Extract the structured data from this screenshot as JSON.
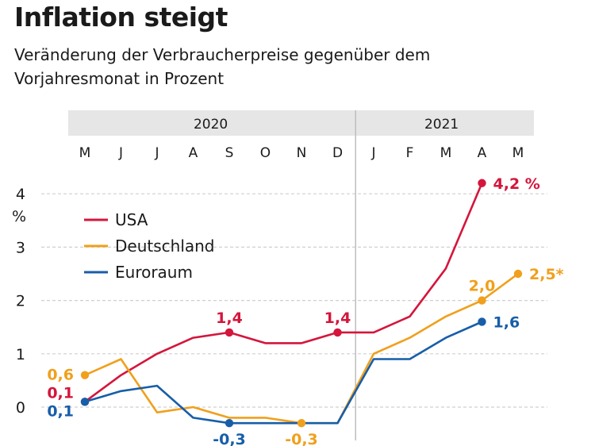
{
  "title": "Inflation steigt",
  "subtitle": "Veränderung der Verbraucherpreise gegenüber dem Vorjahresmonat in Prozent",
  "chart_data": {
    "type": "line",
    "categories": [
      "M",
      "J",
      "J",
      "A",
      "S",
      "O",
      "N",
      "D",
      "J",
      "F",
      "M",
      "A",
      "M"
    ],
    "year_groups": [
      {
        "label": "2020",
        "from": 0,
        "to": 7
      },
      {
        "label": "2021",
        "from": 8,
        "to": 12
      }
    ],
    "ylim": [
      -0.3,
      4.5
    ],
    "yticks": [
      0,
      1,
      2,
      3,
      4
    ],
    "yunit": "%",
    "grid": true,
    "legend_position": "top-left",
    "series": [
      {
        "name": "USA",
        "color": "#d4163c",
        "values": [
          0.1,
          0.6,
          1.0,
          1.3,
          1.4,
          1.2,
          1.2,
          1.4,
          1.4,
          1.7,
          2.6,
          4.2,
          null
        ]
      },
      {
        "name": "Deutschland",
        "color": "#f0a01c",
        "values": [
          0.6,
          0.9,
          -0.1,
          0.0,
          -0.2,
          -0.2,
          -0.3,
          -0.3,
          1.0,
          1.3,
          1.7,
          2.0,
          2.5
        ]
      },
      {
        "name": "Euroraum",
        "color": "#175ea9",
        "values": [
          0.1,
          0.3,
          0.4,
          -0.2,
          -0.3,
          -0.3,
          -0.3,
          -0.3,
          0.9,
          0.9,
          1.3,
          1.6,
          null
        ]
      }
    ],
    "data_labels": [
      {
        "series": 0,
        "index": 0,
        "text": "0,1",
        "pos": "left"
      },
      {
        "series": 0,
        "index": 4,
        "text": "1,4",
        "pos": "above"
      },
      {
        "series": 0,
        "index": 7,
        "text": "1,4",
        "pos": "above"
      },
      {
        "series": 0,
        "index": 11,
        "text": "4,2 %",
        "pos": "right"
      },
      {
        "series": 1,
        "index": 0,
        "text": "0,6",
        "pos": "left"
      },
      {
        "series": 1,
        "index": 6,
        "text": "-0,3",
        "pos": "below"
      },
      {
        "series": 1,
        "index": 11,
        "text": "2,0",
        "pos": "above"
      },
      {
        "series": 1,
        "index": 12,
        "text": "2,5*",
        "pos": "right"
      },
      {
        "series": 2,
        "index": 0,
        "text": "0,1",
        "pos": "left"
      },
      {
        "series": 2,
        "index": 4,
        "text": "-0,3",
        "pos": "below"
      },
      {
        "series": 2,
        "index": 11,
        "text": "1,6",
        "pos": "right"
      }
    ],
    "markers": [
      {
        "series": 0,
        "index": 0
      },
      {
        "series": 0,
        "index": 4
      },
      {
        "series": 0,
        "index": 7
      },
      {
        "series": 0,
        "index": 11
      },
      {
        "series": 1,
        "index": 0
      },
      {
        "series": 1,
        "index": 6
      },
      {
        "series": 1,
        "index": 11
      },
      {
        "series": 1,
        "index": 12
      },
      {
        "series": 2,
        "index": 0
      },
      {
        "series": 2,
        "index": 4
      },
      {
        "series": 2,
        "index": 11
      }
    ]
  }
}
